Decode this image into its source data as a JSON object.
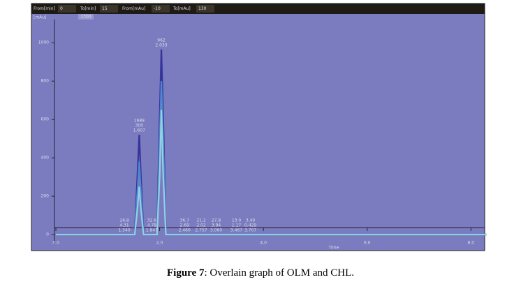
{
  "chart_data": {
    "type": "line",
    "toolbar": [
      "From[min]",
      "0",
      "To[min]",
      "15",
      "From[mAu]",
      "-10",
      "To[mAu]",
      "130"
    ],
    "y_unit": "[mAu]",
    "scale_box": "1300",
    "xlabel": "Time",
    "x": [
      0,
      1.52,
      1.57,
      1.607,
      1.64,
      1.69,
      1.95,
      2.0,
      2.033,
      2.07,
      2.12,
      8.3
    ],
    "series": [
      {
        "color": "#34349a",
        "values": [
          0,
          0,
          300,
          520,
          300,
          0,
          0,
          600,
          965,
          600,
          0,
          0
        ]
      },
      {
        "color": "#4f86cf",
        "values": [
          0,
          0,
          220,
          380,
          220,
          0,
          0,
          480,
          800,
          480,
          0,
          0
        ]
      },
      {
        "color": "#8fd3e2",
        "values": [
          0,
          0,
          130,
          250,
          130,
          0,
          0,
          300,
          650,
          300,
          0,
          0
        ]
      }
    ],
    "xlim": [
      0,
      8.3
    ],
    "ylim": [
      -80,
      1150
    ],
    "xticks": [
      {
        "value": 0,
        "label": "0.0"
      },
      {
        "value": 2,
        "label": "2.0"
      },
      {
        "value": 4,
        "label": "4.0"
      },
      {
        "value": 6,
        "label": "6.0"
      },
      {
        "value": 8,
        "label": "8.0"
      }
    ],
    "yticks": [
      0,
      200,
      400,
      600,
      800,
      1000
    ],
    "peak_labels": [
      {
        "x": 1.607,
        "y": 520,
        "text": [
          "1689",
          "300",
          "1.607"
        ]
      },
      {
        "x": 2.033,
        "y": 965,
        "text": [
          "962",
          "2.033"
        ]
      },
      {
        "x": 1.32,
        "y": 0,
        "text": [
          "26.8",
          "4.31",
          "1.340"
        ]
      },
      {
        "x": 1.85,
        "y": 0,
        "text": [
          "32.6",
          "4.78",
          "1.847"
        ]
      },
      {
        "x": 2.48,
        "y": 0,
        "text": [
          "36.7",
          "2.69",
          "2.460"
        ]
      },
      {
        "x": 2.8,
        "y": 0,
        "text": [
          "21.2",
          "2.02",
          "2.757"
        ]
      },
      {
        "x": 3.09,
        "y": 0,
        "text": [
          "27.8",
          "3.94",
          "3.060"
        ]
      },
      {
        "x": 3.48,
        "y": 0,
        "text": [
          "13.0",
          "1.17",
          "3.467"
        ]
      },
      {
        "x": 3.75,
        "y": 0,
        "text": [
          "3.49",
          "0.429",
          "3.707"
        ]
      }
    ],
    "caption_label": "Figure 7",
    "caption_text": ": Overlain graph of OLM and CHL."
  }
}
